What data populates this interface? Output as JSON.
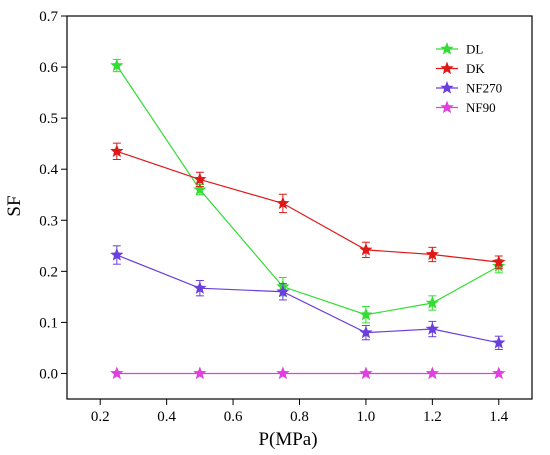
{
  "chart_data": {
    "type": "line",
    "xlabel": "P(MPa)",
    "ylabel": "SF",
    "xlim": [
      0.1,
      1.5
    ],
    "ylim": [
      -0.05,
      0.7
    ],
    "xticks": [
      "0.2",
      "0.4",
      "0.6",
      "0.8",
      "1.0",
      "1.2",
      "1.4"
    ],
    "yticks": [
      "0.0",
      "0.1",
      "0.2",
      "0.3",
      "0.4",
      "0.5",
      "0.6",
      "0.7"
    ],
    "x": [
      0.25,
      0.5,
      0.75,
      1.0,
      1.2,
      1.4
    ],
    "grid": false,
    "legend_position": "top-right",
    "series": [
      {
        "name": "DL",
        "color": "#33dd33",
        "values": [
          0.603,
          0.36,
          0.17,
          0.115,
          0.138,
          0.21
        ],
        "errors": [
          0.012,
          0.01,
          0.018,
          0.016,
          0.014,
          0.013
        ]
      },
      {
        "name": "DK",
        "color": "#e01818",
        "values": [
          0.435,
          0.38,
          0.333,
          0.242,
          0.233,
          0.218
        ],
        "errors": [
          0.016,
          0.014,
          0.018,
          0.015,
          0.014,
          0.012
        ]
      },
      {
        "name": "NF270",
        "color": "#6a3fdc",
        "values": [
          0.232,
          0.167,
          0.16,
          0.08,
          0.087,
          0.06
        ],
        "errors": [
          0.018,
          0.015,
          0.016,
          0.014,
          0.015,
          0.013
        ]
      },
      {
        "name": "NF90",
        "color": "#e040e0",
        "values": [
          0.0,
          0.0,
          0.0,
          0.0,
          0.0,
          0.0
        ],
        "errors": [
          0,
          0,
          0,
          0,
          0,
          0
        ]
      }
    ]
  }
}
